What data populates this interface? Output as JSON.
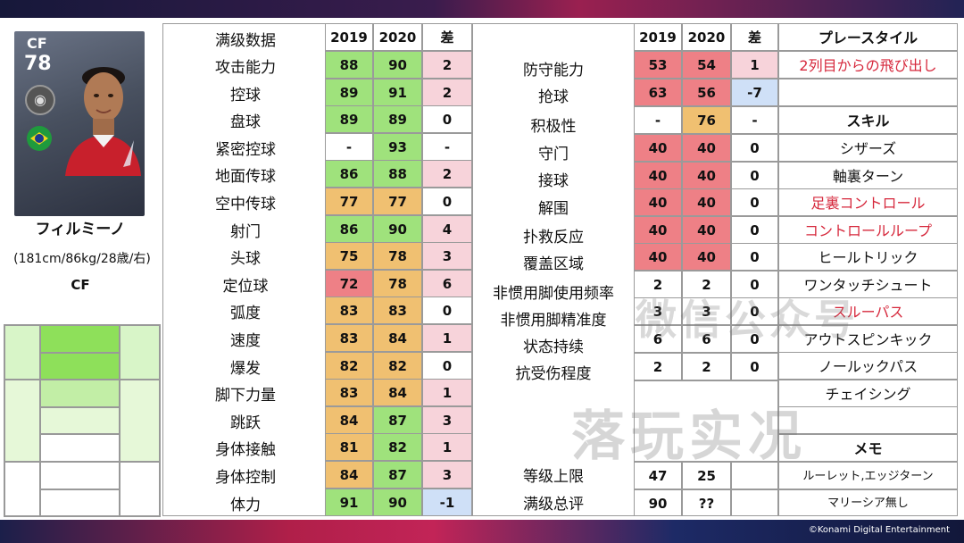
{
  "player": {
    "position": "CF",
    "rating": "78",
    "name": "フィルミーノ",
    "info": "(181cm/86kg/28歳/右)",
    "main_position": "CF"
  },
  "left_table": {
    "header": {
      "label": "满级数据",
      "y2019": "2019",
      "y2020": "2020",
      "diff": "差"
    },
    "rows": [
      {
        "label": "攻击能力",
        "v2019": "88",
        "v2020": "90",
        "diff": "2"
      },
      {
        "label": "控球",
        "v2019": "89",
        "v2020": "91",
        "diff": "2"
      },
      {
        "label": "盘球",
        "v2019": "89",
        "v2020": "89",
        "diff": "0"
      },
      {
        "label": "紧密控球",
        "v2019": "-",
        "v2020": "93",
        "diff": "-"
      },
      {
        "label": "地面传球",
        "v2019": "86",
        "v2020": "88",
        "diff": "2"
      },
      {
        "label": "空中传球",
        "v2019": "77",
        "v2020": "77",
        "diff": "0"
      },
      {
        "label": "射门",
        "v2019": "86",
        "v2020": "90",
        "diff": "4"
      },
      {
        "label": "头球",
        "v2019": "75",
        "v2020": "78",
        "diff": "3"
      },
      {
        "label": "定位球",
        "v2019": "72",
        "v2020": "78",
        "diff": "6"
      },
      {
        "label": "弧度",
        "v2019": "83",
        "v2020": "83",
        "diff": "0"
      },
      {
        "label": "速度",
        "v2019": "83",
        "v2020": "84",
        "diff": "1"
      },
      {
        "label": "爆发",
        "v2019": "82",
        "v2020": "82",
        "diff": "0"
      },
      {
        "label": "脚下力量",
        "v2019": "83",
        "v2020": "84",
        "diff": "1"
      },
      {
        "label": "跳跃",
        "v2019": "84",
        "v2020": "87",
        "diff": "3"
      },
      {
        "label": "身体接触",
        "v2019": "81",
        "v2020": "82",
        "diff": "1"
      },
      {
        "label": "身体控制",
        "v2019": "84",
        "v2020": "87",
        "diff": "3"
      },
      {
        "label": "体力",
        "v2019": "91",
        "v2020": "90",
        "diff": "-1"
      }
    ]
  },
  "right_table": {
    "header": {
      "y2019": "2019",
      "y2020": "2020",
      "diff": "差"
    },
    "rows": [
      {
        "label": "防守能力",
        "v2019": "53",
        "v2020": "54",
        "diff": "1"
      },
      {
        "label": "抢球",
        "v2019": "63",
        "v2020": "56",
        "diff": "-7"
      },
      {
        "label": "积极性",
        "v2019": "-",
        "v2020": "76",
        "diff": "-"
      },
      {
        "label": "守门",
        "v2019": "40",
        "v2020": "40",
        "diff": "0"
      },
      {
        "label": "接球",
        "v2019": "40",
        "v2020": "40",
        "diff": "0"
      },
      {
        "label": "解围",
        "v2019": "40",
        "v2020": "40",
        "diff": "0"
      },
      {
        "label": "扑救反应",
        "v2019": "40",
        "v2020": "40",
        "diff": "0"
      },
      {
        "label": "覆盖区域",
        "v2019": "40",
        "v2020": "40",
        "diff": "0"
      },
      {
        "label": "非惯用脚使用频率",
        "v2019": "2",
        "v2020": "2",
        "diff": "0"
      },
      {
        "label": "非惯用脚精准度",
        "v2019": "3",
        "v2020": "3",
        "diff": "0"
      },
      {
        "label": "状态持续",
        "v2019": "6",
        "v2020": "6",
        "diff": "0"
      },
      {
        "label": "抗受伤程度",
        "v2019": "2",
        "v2020": "2",
        "diff": "0"
      }
    ],
    "bottom": [
      {
        "label": "等级上限",
        "v2019": "47",
        "v2020": "25"
      },
      {
        "label": "满级总评",
        "v2019": "90",
        "v2020": "??"
      }
    ]
  },
  "play_style": {
    "header": "プレースタイル",
    "value": "2列目からの飛び出し"
  },
  "skills": {
    "header": "スキル",
    "items": [
      {
        "name": "シザーズ",
        "new": false
      },
      {
        "name": "軸裏ターン",
        "new": false
      },
      {
        "name": "足裏コントロール",
        "new": true
      },
      {
        "name": "コントロールループ",
        "new": true
      },
      {
        "name": "ヒールトリック",
        "new": false
      },
      {
        "name": "ワンタッチシュート",
        "new": false
      },
      {
        "name": "スルーパス",
        "new": true
      },
      {
        "name": "アウトスピンキック",
        "new": false
      },
      {
        "name": "ノールックパス",
        "new": false
      },
      {
        "name": "チェイシング",
        "new": false
      }
    ]
  },
  "memo": {
    "header": "メモ",
    "lines": [
      "ルーレット,エッジターン",
      "マリーシア無し"
    ]
  },
  "watermark": {
    "line1": "微信公众号",
    "line2": "落玩实况"
  },
  "copyright": "©Konami Digital Entertainment",
  "colors": {
    "green": "#9fe27c",
    "orange": "#f0c071",
    "pink": "#f7d3da",
    "red": "#ee8086",
    "blue": "#cfe0f7",
    "new_skill_text": "#d6283c"
  }
}
